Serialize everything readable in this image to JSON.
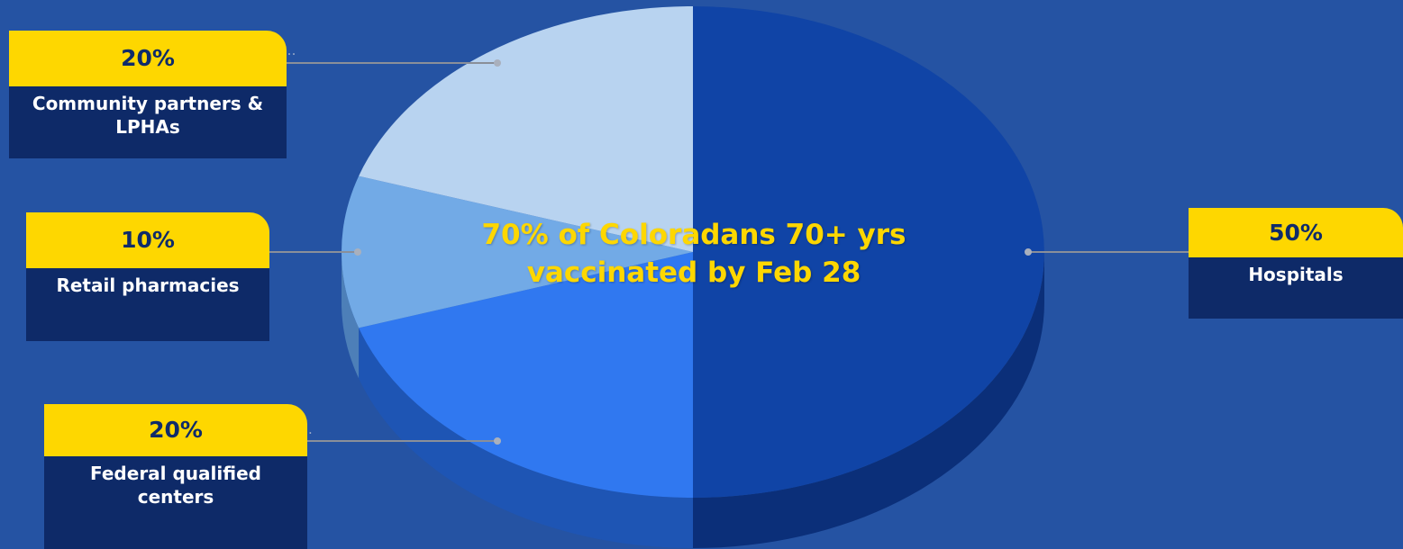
{
  "chart_data": {
    "type": "pie",
    "title": "70% of Coloradans 70+ yrs vaccinated by Feb 28",
    "slices": [
      {
        "label": "Hospitals",
        "value": 50,
        "value_label": "50%",
        "color": "#1044a6",
        "side_color": "#0b2f79"
      },
      {
        "label": "Federal qualified centers",
        "value": 20,
        "value_label": "20%",
        "color": "#3078f0",
        "side_color": "#1e55b4"
      },
      {
        "label": "Retail pharmacies",
        "value": 10,
        "value_label": "10%",
        "color": "#72aae6",
        "side_color": "#4d7fb8"
      },
      {
        "label": "Community partners & LPHAs",
        "value": 20,
        "value_label": "20%",
        "color": "#b8d3f0",
        "side_color": "#8eaad0"
      }
    ],
    "legend": "callouts",
    "three_d": true
  },
  "colors": {
    "background": "#2553a3",
    "callout_accent": "#fed700",
    "callout_body": "#0e2a68",
    "leader_line": "#8a8f99"
  },
  "ghost_marks": {
    "community": "S…",
    "federal": "."
  }
}
